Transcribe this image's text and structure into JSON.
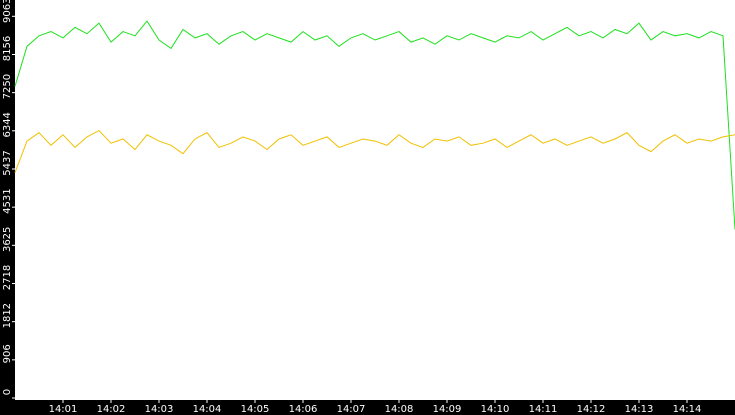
{
  "chart_data": {
    "type": "line",
    "x": [
      840,
      840.25,
      840.5,
      840.75,
      841,
      841.25,
      841.5,
      841.75,
      842,
      842.25,
      842.5,
      842.75,
      843,
      843.25,
      843.5,
      843.75,
      844,
      844.25,
      844.5,
      844.75,
      845,
      845.25,
      845.5,
      845.75,
      846,
      846.25,
      846.5,
      846.75,
      847,
      847.25,
      847.5,
      847.75,
      848,
      848.25,
      848.5,
      848.75,
      849,
      849.25,
      849.5,
      849.75,
      850,
      850.25,
      850.5,
      850.75,
      851,
      851.25,
      851.5,
      851.75,
      852,
      852.25,
      852.5,
      852.75,
      853,
      853.25,
      853.5,
      853.75,
      854,
      854.25,
      854.5,
      854.75,
      855
    ],
    "series": [
      {
        "color": "#1ee01e",
        "values": [
          7400,
          8350,
          8600,
          8700,
          8550,
          8800,
          8650,
          8900,
          8450,
          8700,
          8600,
          8950,
          8500,
          8300,
          8750,
          8550,
          8650,
          8400,
          8600,
          8700,
          8500,
          8650,
          8550,
          8450,
          8700,
          8500,
          8600,
          8350,
          8550,
          8650,
          8500,
          8600,
          8700,
          8450,
          8550,
          8400,
          8600,
          8500,
          8650,
          8550,
          8450,
          8600,
          8550,
          8700,
          8500,
          8650,
          8800,
          8600,
          8700,
          8550,
          8750,
          8650,
          8900,
          8500,
          8700,
          8600,
          8650,
          8550,
          8700,
          8600,
          4000
        ]
      },
      {
        "color": "#f0c000",
        "values": [
          5350,
          6100,
          6300,
          6000,
          6250,
          5950,
          6200,
          6350,
          6050,
          6150,
          5900,
          6250,
          6100,
          6000,
          5800,
          6150,
          6300,
          5950,
          6050,
          6200,
          6100,
          5900,
          6150,
          6250,
          6000,
          6100,
          6200,
          5950,
          6050,
          6150,
          6100,
          6000,
          6250,
          6050,
          5950,
          6150,
          6100,
          6200,
          6000,
          6050,
          6150,
          5950,
          6100,
          6250,
          6050,
          6150,
          6000,
          6100,
          6200,
          6050,
          6150,
          6300,
          6000,
          5850,
          6100,
          6250,
          6050,
          6150,
          6100,
          6200,
          6250
        ]
      }
    ],
    "xlim": [
      840,
      855
    ],
    "xticks": [
      {
        "value": 841,
        "label": "14:01"
      },
      {
        "value": 842,
        "label": "14:02"
      },
      {
        "value": 843,
        "label": "14:03"
      },
      {
        "value": 844,
        "label": "14:04"
      },
      {
        "value": 845,
        "label": "14:05"
      },
      {
        "value": 846,
        "label": "14:06"
      },
      {
        "value": 847,
        "label": "14:07"
      },
      {
        "value": 848,
        "label": "14:08"
      },
      {
        "value": 849,
        "label": "14:09"
      },
      {
        "value": 850,
        "label": "14:10"
      },
      {
        "value": 851,
        "label": "14:11"
      },
      {
        "value": 852,
        "label": "14:12"
      },
      {
        "value": 853,
        "label": "14:13"
      },
      {
        "value": 854,
        "label": "14:14"
      }
    ],
    "ylim": [
      0,
      9450
    ],
    "yticks": [
      0,
      906,
      1812,
      2718,
      3625,
      4531,
      5437,
      6344,
      7250,
      8156,
      9063
    ]
  }
}
